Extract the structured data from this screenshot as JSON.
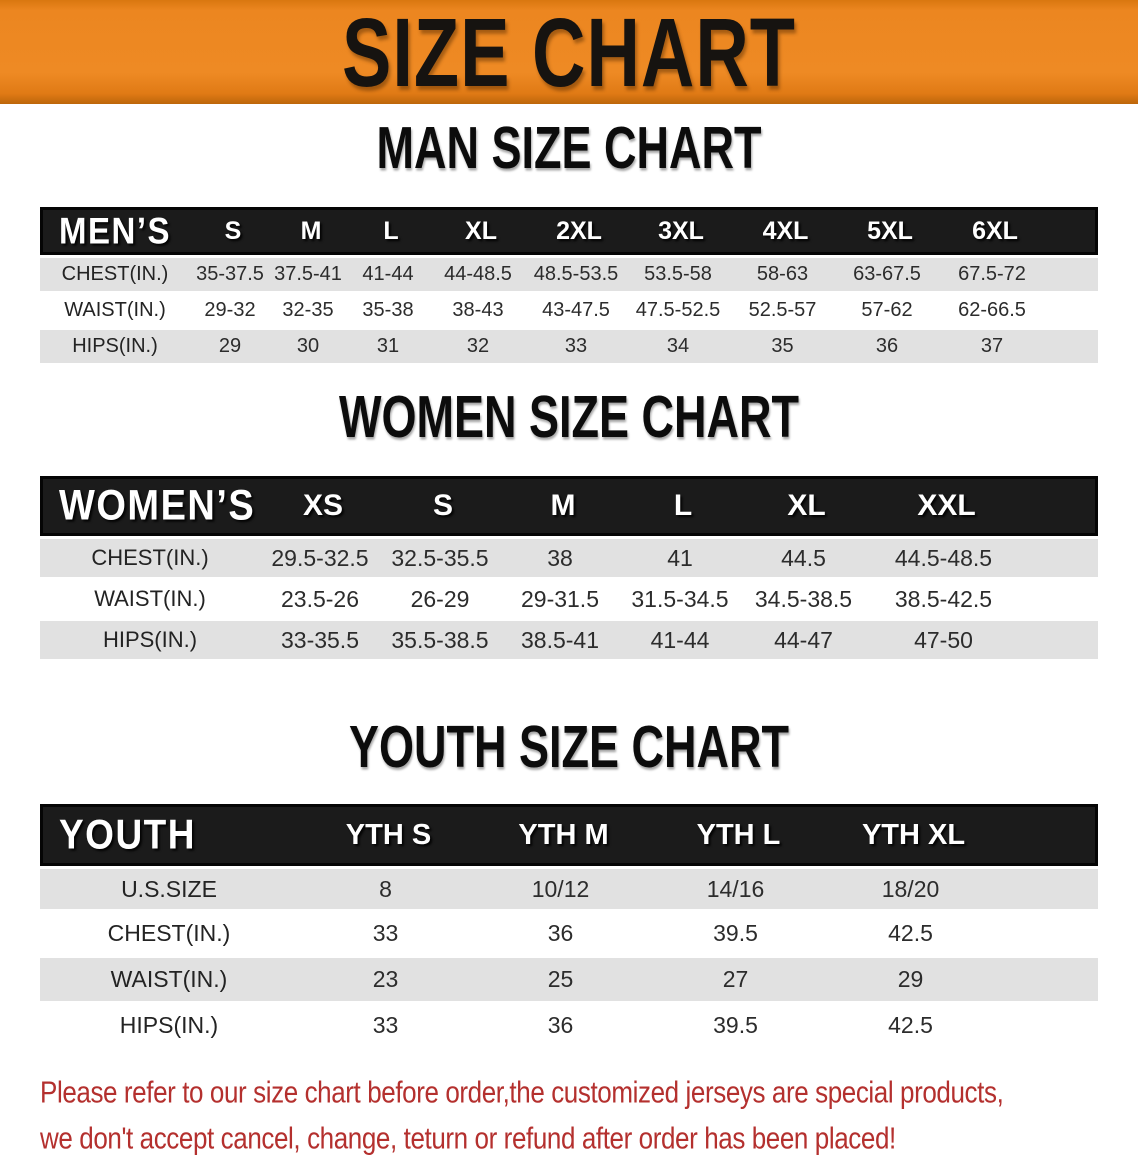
{
  "banner": {
    "title": "SIZE CHART",
    "bg_color": "#EC8620",
    "text_color": "#161310"
  },
  "sections": [
    {
      "heading": "MAN SIZE CHART",
      "table": {
        "header_label": "MEN’S",
        "columns": [
          "S",
          "M",
          "L",
          "XL",
          "2XL",
          "3XL",
          "4XL",
          "5XL",
          "6XL"
        ],
        "rows": [
          {
            "label": "CHEST(IN.)",
            "values": [
              "35-37.5",
              "37.5-41",
              "41-44",
              "44-48.5",
              "48.5-53.5",
              "53.5-58",
              "58-63",
              "63-67.5",
              "67.5-72"
            ]
          },
          {
            "label": "WAIST(IN.)",
            "values": [
              "29-32",
              "32-35",
              "35-38",
              "38-43",
              "43-47.5",
              "47.5-52.5",
              "52.5-57",
              "57-62",
              "62-66.5"
            ]
          },
          {
            "label": "HIPS(IN.)",
            "values": [
              "29",
              "30",
              "31",
              "32",
              "33",
              "34",
              "35",
              "36",
              "37"
            ]
          }
        ]
      }
    },
    {
      "heading": "WOMEN SIZE CHART",
      "table": {
        "header_label": "WOMEN’S",
        "columns": [
          "XS",
          "S",
          "M",
          "L",
          "XL",
          "XXL"
        ],
        "rows": [
          {
            "label": "CHEST(IN.)",
            "values": [
              "29.5-32.5",
              "32.5-35.5",
              "38",
              "41",
              "44.5",
              "44.5-48.5"
            ]
          },
          {
            "label": "WAIST(IN.)",
            "values": [
              "23.5-26",
              "26-29",
              "29-31.5",
              "31.5-34.5",
              "34.5-38.5",
              "38.5-42.5"
            ]
          },
          {
            "label": "HIPS(IN.)",
            "values": [
              "33-35.5",
              "35.5-38.5",
              "38.5-41",
              "41-44",
              "44-47",
              "47-50"
            ]
          }
        ]
      }
    },
    {
      "heading": "YOUTH SIZE CHART",
      "table": {
        "header_label": "YOUTH",
        "columns": [
          "YTH S",
          "YTH M",
          "YTH L",
          "YTH XL"
        ],
        "rows": [
          {
            "label": "U.S.SIZE",
            "values": [
              "8",
              "10/12",
              "14/16",
              "18/20"
            ]
          },
          {
            "label": "CHEST(IN.)",
            "values": [
              "33",
              "36",
              "39.5",
              "42.5"
            ]
          },
          {
            "label": "WAIST(IN.)",
            "values": [
              "23",
              "25",
              "27",
              "29"
            ]
          },
          {
            "label": "HIPS(IN.)",
            "values": [
              "33",
              "36",
              "39.5",
              "42.5"
            ]
          }
        ]
      }
    }
  ],
  "footer": {
    "line1": "Please refer to our size chart before order,the customized jerseys are special products,",
    "line2": "we don't accept cancel, change, teturn or refund after order has been placed!",
    "text_color": "#B4302E"
  },
  "colors": {
    "table_header_bg": "#1B1B1B",
    "row_alt_bg": "#E1E1E1"
  }
}
